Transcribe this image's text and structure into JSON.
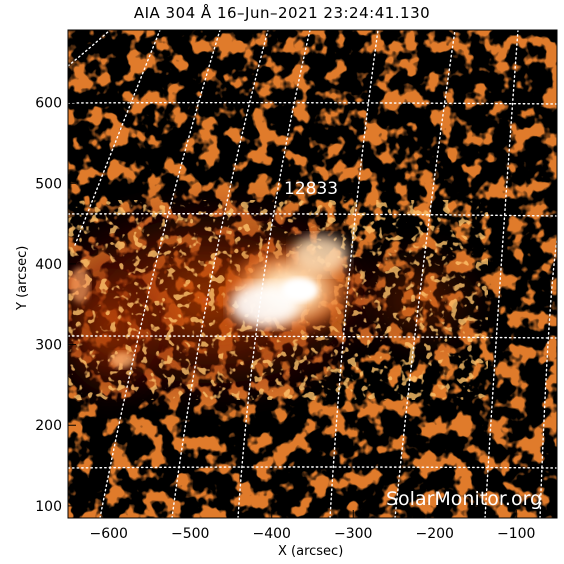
{
  "title": "AIA 304 Å 16–Jun–2021 23:24:41.130",
  "x_axis": {
    "label": "X (arcsec)",
    "ticks": [
      "−600",
      "−500",
      "−400",
      "−300",
      "−200",
      "−100"
    ],
    "tick_values": [
      -600,
      -500,
      -400,
      -300,
      -200,
      -100
    ],
    "range": [
      -650,
      -50
    ]
  },
  "y_axis": {
    "label": "Y (arcsec)",
    "ticks": [
      "600",
      "500",
      "400",
      "300",
      "200",
      "100"
    ],
    "tick_values": [
      600,
      500,
      400,
      300,
      200,
      100
    ],
    "range": [
      85,
      690
    ]
  },
  "region": {
    "number": "12833",
    "x": -360,
    "y": 487
  },
  "watermark": "SolarMonitor.org",
  "colors": {
    "background": "#000000",
    "flare_core": "#fff6e8",
    "hot": "#e85a10",
    "warm": "#8a1c02",
    "grid": "#ffffff"
  },
  "image_description_tag": "solar-euv-304-colormap"
}
